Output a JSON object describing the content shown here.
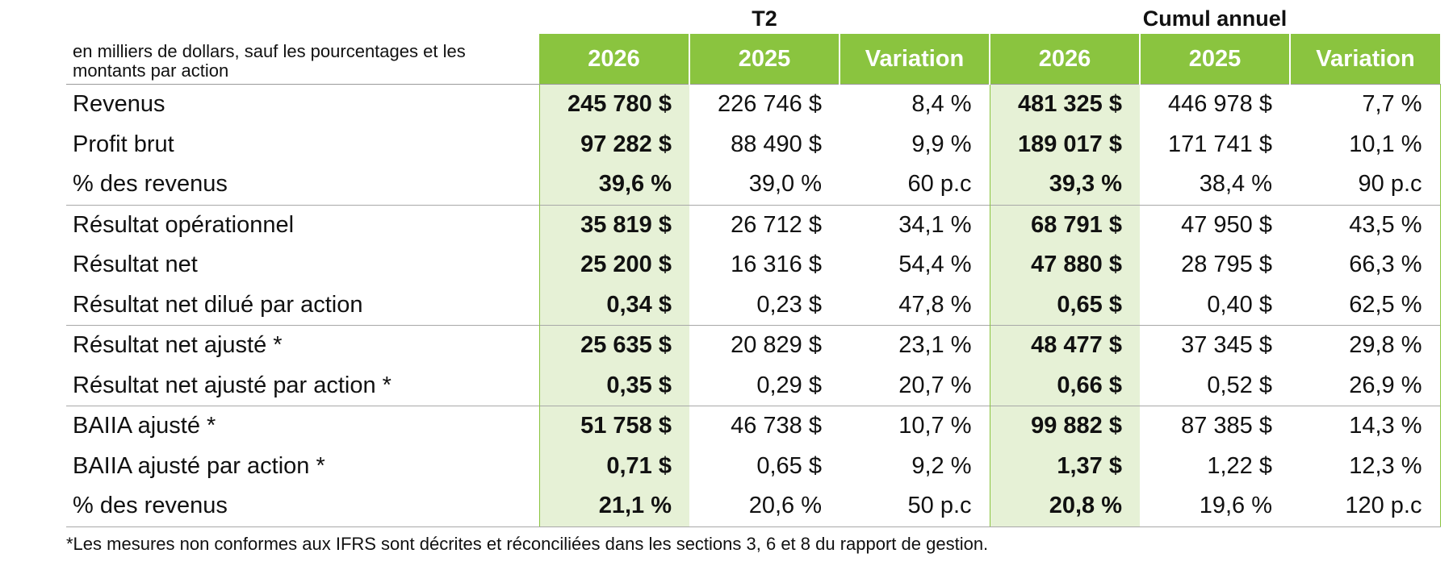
{
  "header": {
    "group_q2": "T2",
    "group_ytd": "Cumul annuel",
    "units_note": "en milliers de dollars, sauf les pourcentages et les montants par action",
    "col_2026": "2026",
    "col_2025": "2025",
    "col_variation": "Variation"
  },
  "rows": [
    {
      "label": "Revenus",
      "q2_2026": "245 780 $",
      "q2_2025": "226 746 $",
      "q2_var": "8,4 %",
      "ytd_2026": "481 325 $",
      "ytd_2025": "446 978 $",
      "ytd_var": "7,7 %"
    },
    {
      "label": "Profit brut",
      "q2_2026": "97 282 $",
      "q2_2025": "88 490 $",
      "q2_var": "9,9 %",
      "ytd_2026": "189 017 $",
      "ytd_2025": "171 741 $",
      "ytd_var": "10,1 %"
    },
    {
      "label": "% des revenus",
      "q2_2026": "39,6 %",
      "q2_2025": "39,0 %",
      "q2_var": "60 p.c",
      "ytd_2026": "39,3 %",
      "ytd_2025": "38,4 %",
      "ytd_var": "90 p.c"
    },
    {
      "label": "Résultat opérationnel",
      "q2_2026": "35 819 $",
      "q2_2025": "26 712 $",
      "q2_var": "34,1 %",
      "ytd_2026": "68 791 $",
      "ytd_2025": "47 950 $",
      "ytd_var": "43,5 %"
    },
    {
      "label": "Résultat net",
      "q2_2026": "25 200 $",
      "q2_2025": "16 316 $",
      "q2_var": "54,4 %",
      "ytd_2026": "47 880 $",
      "ytd_2025": "28 795 $",
      "ytd_var": "66,3 %"
    },
    {
      "label": "Résultat net dilué par action",
      "q2_2026": "0,34 $",
      "q2_2025": "0,23 $",
      "q2_var": "47,8 %",
      "ytd_2026": "0,65 $",
      "ytd_2025": "0,40 $",
      "ytd_var": "62,5 %"
    },
    {
      "label": "Résultat net ajusté *",
      "q2_2026": "25 635 $",
      "q2_2025": "20 829 $",
      "q2_var": "23,1 %",
      "ytd_2026": "48 477 $",
      "ytd_2025": "37 345 $",
      "ytd_var": "29,8 %"
    },
    {
      "label": "Résultat net ajusté par action *",
      "q2_2026": "0,35 $",
      "q2_2025": "0,29 $",
      "q2_var": "20,7 %",
      "ytd_2026": "0,66 $",
      "ytd_2025": "0,52 $",
      "ytd_var": "26,9 %"
    },
    {
      "label": "BAIIA ajusté *",
      "q2_2026": "51 758 $",
      "q2_2025": "46 738 $",
      "q2_var": "10,7 %",
      "ytd_2026": "99 882 $",
      "ytd_2025": "87 385 $",
      "ytd_var": "14,3 %"
    },
    {
      "label": "BAIIA ajusté par action *",
      "q2_2026": "0,71 $",
      "q2_2025": "0,65 $",
      "q2_var": "9,2 %",
      "ytd_2026": "1,37 $",
      "ytd_2025": "1,22 $",
      "ytd_var": "12,3 %"
    },
    {
      "label": "% des revenus",
      "q2_2026": "21,1 %",
      "q2_2025": "20,6 %",
      "q2_var": "50 p.c",
      "ytd_2026": "20,8 %",
      "ytd_2025": "19,6 %",
      "ytd_var": "120 p.c"
    }
  ],
  "footnote": "*Les mesures non conformes aux IFRS sont décrites et réconciliées dans les sections 3, 6 et 8 du rapport de gestion.",
  "colors": {
    "header_green": "#8ac43f",
    "highlight_green": "#e6f1d6"
  }
}
